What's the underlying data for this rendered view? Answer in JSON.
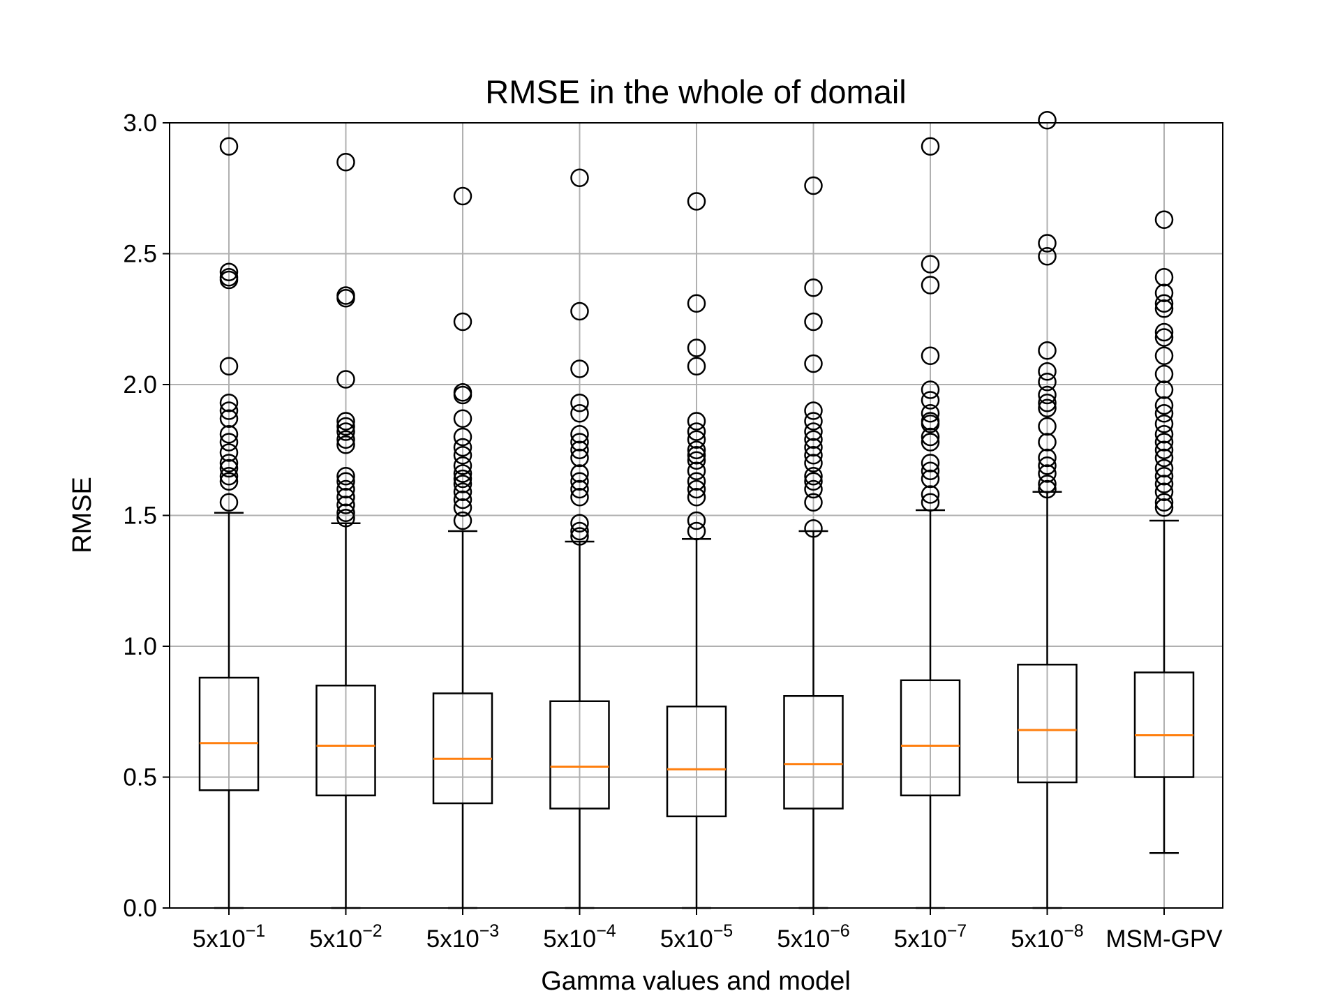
{
  "chart_data": {
    "type": "boxplot",
    "title": "RMSE in the whole of domail",
    "xlabel": "Gamma values and model",
    "ylabel": "RMSE",
    "ylim": [
      0,
      3.0
    ],
    "yticks": [
      "0.0",
      "0.5",
      "1.0",
      "1.5",
      "2.0",
      "2.5",
      "3.0"
    ],
    "grid": true,
    "colors": {
      "box": "#000000",
      "median": "#ff7f0e",
      "grid": "#b0b0b0"
    },
    "categories": [
      {
        "base": "5x10",
        "exp": "−1"
      },
      {
        "base": "5x10",
        "exp": "−2"
      },
      {
        "base": "5x10",
        "exp": "−3"
      },
      {
        "base": "5x10",
        "exp": "−4"
      },
      {
        "base": "5x10",
        "exp": "−5"
      },
      {
        "base": "5x10",
        "exp": "−6"
      },
      {
        "base": "5x10",
        "exp": "−7"
      },
      {
        "base": "5x10",
        "exp": "−8"
      },
      {
        "base": "MSM-GPV",
        "exp": ""
      }
    ],
    "boxes": [
      {
        "whisker_low": 0.0,
        "q1": 0.45,
        "median": 0.63,
        "q3": 0.88,
        "whisker_high": 1.51,
        "outliers": [
          2.91,
          2.43,
          2.41,
          2.4,
          2.07,
          1.93,
          1.9,
          1.87,
          1.81,
          1.78,
          1.74,
          1.7,
          1.68,
          1.65,
          1.63,
          1.55
        ]
      },
      {
        "whisker_low": 0.0,
        "q1": 0.43,
        "median": 0.62,
        "q3": 0.85,
        "whisker_high": 1.47,
        "outliers": [
          2.85,
          2.34,
          2.33,
          2.02,
          1.86,
          1.84,
          1.82,
          1.79,
          1.77,
          1.65,
          1.63,
          1.6,
          1.57,
          1.54,
          1.51,
          1.49
        ]
      },
      {
        "whisker_low": 0.0,
        "q1": 0.4,
        "median": 0.57,
        "q3": 0.82,
        "whisker_high": 1.44,
        "outliers": [
          2.72,
          2.24,
          1.97,
          1.96,
          1.87,
          1.8,
          1.76,
          1.73,
          1.69,
          1.66,
          1.64,
          1.62,
          1.59,
          1.56,
          1.53,
          1.48
        ]
      },
      {
        "whisker_low": 0.0,
        "q1": 0.38,
        "median": 0.54,
        "q3": 0.79,
        "whisker_high": 1.4,
        "outliers": [
          2.79,
          2.28,
          2.06,
          1.93,
          1.89,
          1.81,
          1.78,
          1.75,
          1.72,
          1.66,
          1.63,
          1.6,
          1.57,
          1.47,
          1.44,
          1.42
        ]
      },
      {
        "whisker_low": 0.0,
        "q1": 0.35,
        "median": 0.53,
        "q3": 0.77,
        "whisker_high": 1.41,
        "outliers": [
          2.7,
          2.31,
          2.14,
          2.07,
          1.86,
          1.82,
          1.79,
          1.75,
          1.73,
          1.71,
          1.67,
          1.63,
          1.6,
          1.57,
          1.48,
          1.44
        ]
      },
      {
        "whisker_low": 0.0,
        "q1": 0.38,
        "median": 0.55,
        "q3": 0.81,
        "whisker_high": 1.44,
        "outliers": [
          2.76,
          2.37,
          2.24,
          2.08,
          1.9,
          1.86,
          1.82,
          1.79,
          1.76,
          1.73,
          1.7,
          1.65,
          1.63,
          1.6,
          1.55,
          1.45
        ]
      },
      {
        "whisker_low": 0.0,
        "q1": 0.43,
        "median": 0.62,
        "q3": 0.87,
        "whisker_high": 1.52,
        "outliers": [
          2.91,
          2.46,
          2.38,
          2.11,
          1.98,
          1.94,
          1.89,
          1.86,
          1.85,
          1.8,
          1.78,
          1.7,
          1.67,
          1.64,
          1.58,
          1.55
        ]
      },
      {
        "whisker_low": 0.0,
        "q1": 0.48,
        "median": 0.68,
        "q3": 0.93,
        "whisker_high": 1.59,
        "outliers": [
          3.01,
          2.54,
          2.49,
          2.13,
          2.05,
          2.01,
          1.96,
          1.93,
          1.91,
          1.84,
          1.78,
          1.72,
          1.69,
          1.66,
          1.62,
          1.6
        ]
      },
      {
        "whisker_low": 0.21,
        "q1": 0.5,
        "median": 0.66,
        "q3": 0.9,
        "whisker_high": 1.48,
        "outliers": [
          2.63,
          2.41,
          2.35,
          2.31,
          2.29,
          2.2,
          2.18,
          2.11,
          2.04,
          1.98,
          1.92,
          1.89,
          1.85,
          1.81,
          1.78,
          1.75,
          1.72,
          1.68,
          1.65,
          1.62,
          1.59,
          1.55,
          1.53
        ]
      }
    ]
  }
}
